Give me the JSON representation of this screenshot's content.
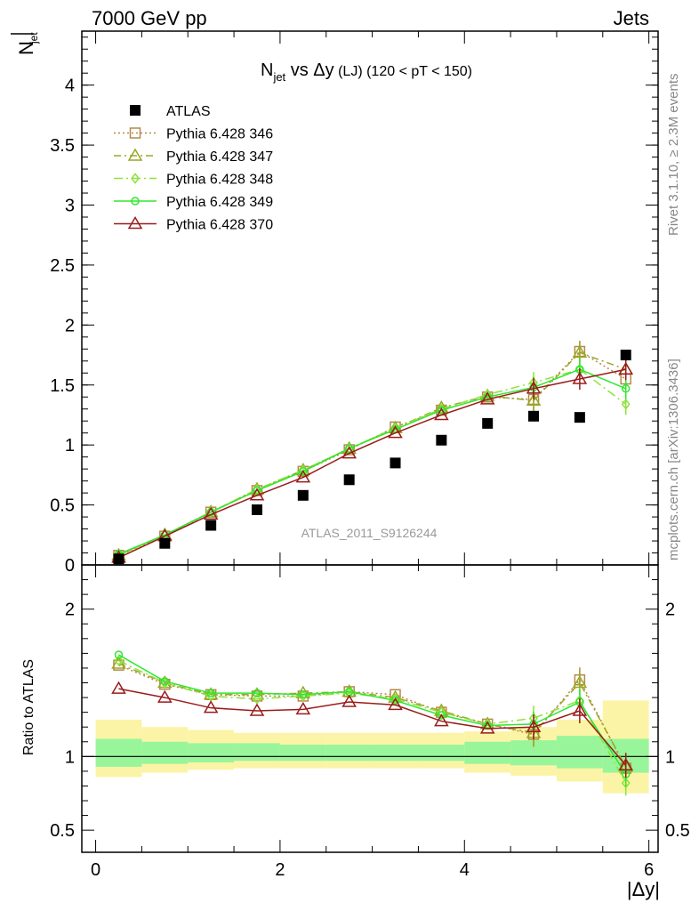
{
  "header": {
    "energy_label": "7000 GeV pp",
    "process_label": "Jets"
  },
  "side_labels": {
    "rivet": "Rivet 3.1.10, ≥ 2.3M events",
    "mcplots": "mcplots.cern.ch [arXiv:1306.3436]"
  },
  "watermark": "ATLAS_2011_S9126244",
  "axis_text": {
    "top_ylabel": "N_jet (overline)",
    "bottom_ylabel": "Ratio to ATLAS",
    "xlabel": "|Δy|"
  },
  "chart_data": [
    {
      "type": "scatter",
      "title_parts": {
        "N": "N",
        "jet": "jet",
        "vs": " vs ",
        "dy": "Δy",
        "lj": " (LJ)",
        "range": " (120 < pT < 150)"
      },
      "xlim": [
        -0.15,
        6.1
      ],
      "ylim": [
        0,
        4.45
      ],
      "yticks": [
        0,
        0.5,
        1,
        1.5,
        2,
        2.5,
        3,
        3.5,
        4
      ],
      "ytick_labels": [
        "0",
        "0.5",
        "1",
        "1.5",
        "2",
        "2.5",
        "3",
        "3.5",
        "4"
      ],
      "x": [
        0.25,
        0.75,
        1.25,
        1.75,
        2.25,
        2.75,
        3.25,
        3.75,
        4.25,
        4.75,
        5.25,
        5.75
      ],
      "series": [
        {
          "name": "ATLAS",
          "color": "#000000",
          "marker": "square-filled",
          "values": [
            0.05,
            0.18,
            0.33,
            0.46,
            0.58,
            0.71,
            0.85,
            1.04,
            1.18,
            1.24,
            1.23,
            1.75
          ]
        },
        {
          "name": "Pythia 6.428 346",
          "color": "#b5894b",
          "marker": "square-open",
          "dash": "2,3",
          "values": [
            0.08,
            0.24,
            0.44,
            0.62,
            0.78,
            0.96,
            1.15,
            1.29,
            1.4,
            1.38,
            1.78,
            1.55
          ]
        },
        {
          "name": "Pythia 6.428 347",
          "color": "#9aa824",
          "marker": "triangle-open",
          "dash": "8,4,2,4",
          "values": [
            0.08,
            0.25,
            0.44,
            0.63,
            0.79,
            0.97,
            1.14,
            1.31,
            1.41,
            1.37,
            1.77,
            1.63
          ]
        },
        {
          "name": "Pythia 6.428 348",
          "color": "#8fe23b",
          "marker": "diamond-open",
          "dash": "10,4,2,4",
          "values": [
            0.08,
            0.25,
            0.44,
            0.63,
            0.79,
            0.97,
            1.14,
            1.3,
            1.42,
            1.52,
            1.63,
            1.34
          ]
        },
        {
          "name": "Pythia 6.428 349",
          "color": "#2ee82e",
          "marker": "circle-open",
          "dash": "",
          "values": [
            0.09,
            0.25,
            0.44,
            0.62,
            0.78,
            0.97,
            1.13,
            1.29,
            1.4,
            1.48,
            1.63,
            1.47
          ]
        },
        {
          "name": "Pythia 6.428 370",
          "color": "#9b1b1b",
          "marker": "triangle-open",
          "dash": "",
          "values": [
            0.06,
            0.24,
            0.42,
            0.58,
            0.73,
            0.93,
            1.1,
            1.25,
            1.38,
            1.47,
            1.55,
            1.63
          ]
        }
      ]
    },
    {
      "type": "scatter",
      "xlim": [
        -0.15,
        6.1
      ],
      "ylim": [
        0.35,
        2.3
      ],
      "yticks": [
        0.5,
        1,
        2
      ],
      "ytick_labels": [
        "0.5",
        "1",
        "2"
      ],
      "xticks": [
        0,
        2,
        4,
        6
      ],
      "xtick_labels": [
        "0",
        "2",
        "4",
        "6"
      ],
      "x": [
        0.25,
        0.75,
        1.25,
        1.75,
        2.25,
        2.75,
        3.25,
        3.75,
        4.25,
        4.75,
        5.25,
        5.75
      ],
      "bands": {
        "edges": [
          0,
          0.5,
          1,
          1.5,
          2,
          2.5,
          3,
          3.5,
          4,
          4.5,
          5,
          5.5,
          6
        ],
        "inner": [
          [
            0.93,
            1.12
          ],
          [
            0.95,
            1.1
          ],
          [
            0.96,
            1.09
          ],
          [
            0.97,
            1.09
          ],
          [
            0.97,
            1.08
          ],
          [
            0.97,
            1.08
          ],
          [
            0.97,
            1.08
          ],
          [
            0.97,
            1.08
          ],
          [
            0.95,
            1.1
          ],
          [
            0.94,
            1.11
          ],
          [
            0.92,
            1.14
          ],
          [
            0.89,
            1.12
          ]
        ],
        "outer": [
          [
            0.86,
            1.25
          ],
          [
            0.89,
            1.2
          ],
          [
            0.91,
            1.18
          ],
          [
            0.92,
            1.16
          ],
          [
            0.92,
            1.16
          ],
          [
            0.92,
            1.16
          ],
          [
            0.92,
            1.16
          ],
          [
            0.92,
            1.16
          ],
          [
            0.89,
            1.17
          ],
          [
            0.87,
            1.2
          ],
          [
            0.83,
            1.25
          ],
          [
            0.75,
            1.38
          ]
        ],
        "inner_color": "#99f59a",
        "outer_color": "#fbf4a6"
      },
      "reference_line": 1,
      "series": [
        {
          "name": "Pythia 6.428 346",
          "values": [
            1.62,
            1.49,
            1.42,
            1.41,
            1.41,
            1.44,
            1.42,
            1.3,
            1.22,
            1.15,
            1.52,
            0.92
          ]
        },
        {
          "name": "Pythia 6.428 347",
          "values": [
            1.63,
            1.5,
            1.42,
            1.42,
            1.43,
            1.44,
            1.4,
            1.31,
            1.22,
            1.16,
            1.5,
            0.93
          ]
        },
        {
          "name": "Pythia 6.428 348",
          "values": [
            1.65,
            1.5,
            1.41,
            1.39,
            1.41,
            1.43,
            1.39,
            1.3,
            1.22,
            1.26,
            1.38,
            0.82
          ]
        },
        {
          "name": "Pythia 6.428 349",
          "values": [
            1.69,
            1.51,
            1.43,
            1.43,
            1.42,
            1.44,
            1.38,
            1.28,
            1.21,
            1.22,
            1.37,
            0.88
          ]
        },
        {
          "name": "Pythia 6.428 370",
          "values": [
            1.46,
            1.4,
            1.33,
            1.31,
            1.32,
            1.37,
            1.35,
            1.24,
            1.19,
            1.2,
            1.31,
            0.94
          ]
        }
      ]
    }
  ]
}
